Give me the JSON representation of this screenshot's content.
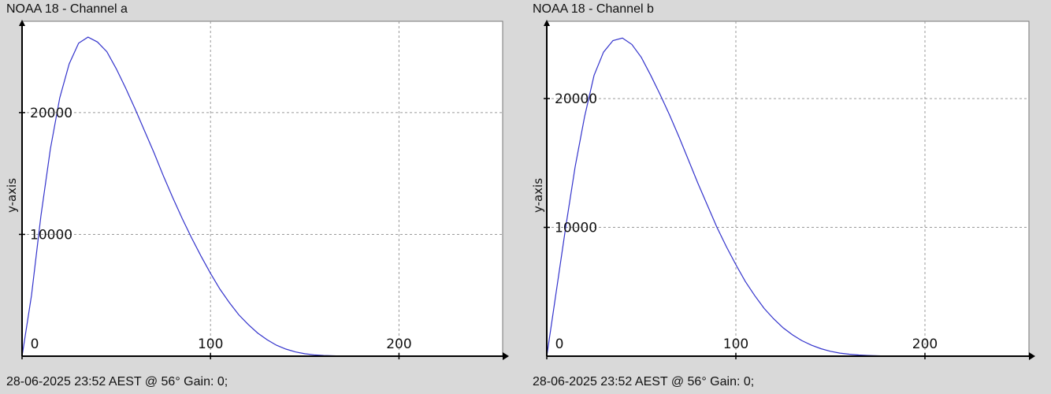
{
  "panels": [
    {
      "title": "NOAA 18 - Channel a",
      "footer": "28-06-2025 23:52 AEST @ 56° Gain: 0;",
      "ylabel": "y-axis"
    },
    {
      "title": "NOAA 18 - Channel b",
      "footer": "28-06-2025 23:52 AEST @ 56° Gain: 0;",
      "ylabel": "y-axis"
    }
  ],
  "colors": {
    "background": "#d9d9d9",
    "plot_bg": "#ffffff",
    "line": "#3333cc",
    "grid": "#9a9a9a",
    "axis": "#000000"
  },
  "chart_data": [
    {
      "type": "line",
      "title": "NOAA 18 - Channel a",
      "xlabel": "",
      "ylabel": "y-axis",
      "xlim": [
        0,
        255
      ],
      "ylim": [
        0,
        27500
      ],
      "grid": true,
      "x_ticks": [
        "0",
        "100",
        "200"
      ],
      "y_ticks": [
        "10000",
        "20000"
      ],
      "series": [
        {
          "x": [
            0,
            5,
            10,
            15,
            20,
            25,
            30,
            35,
            40,
            45,
            50,
            55,
            60,
            65,
            70,
            75,
            80,
            85,
            90,
            95,
            100,
            105,
            110,
            115,
            120,
            125,
            130,
            135,
            140,
            145,
            150,
            155,
            160,
            165,
            170,
            175,
            180,
            185
          ],
          "values": [
            0,
            5000,
            11500,
            17000,
            21200,
            24000,
            25700,
            26200,
            25800,
            25000,
            23600,
            22000,
            20300,
            18500,
            16700,
            14800,
            13000,
            11300,
            9700,
            8200,
            6800,
            5500,
            4400,
            3400,
            2600,
            1900,
            1350,
            900,
            580,
            350,
            200,
            110,
            60,
            30,
            15,
            8,
            4,
            0
          ]
        }
      ]
    },
    {
      "type": "line",
      "title": "NOAA 18 - Channel b",
      "xlabel": "",
      "ylabel": "y-axis",
      "xlim": [
        0,
        255
      ],
      "ylim": [
        0,
        26000
      ],
      "grid": true,
      "x_ticks": [
        "0",
        "100",
        "200"
      ],
      "y_ticks": [
        "10000",
        "20000"
      ],
      "series": [
        {
          "x": [
            0,
            5,
            10,
            15,
            20,
            25,
            30,
            35,
            40,
            45,
            50,
            55,
            60,
            65,
            70,
            75,
            80,
            85,
            90,
            95,
            100,
            105,
            110,
            115,
            120,
            125,
            130,
            135,
            140,
            145,
            150,
            155,
            160,
            165,
            170,
            175,
            180,
            185,
            190,
            195
          ],
          "values": [
            0,
            5000,
            10000,
            14700,
            18600,
            21800,
            23600,
            24500,
            24700,
            24200,
            23200,
            21800,
            20300,
            18700,
            17000,
            15200,
            13400,
            11700,
            10000,
            8500,
            7100,
            5800,
            4700,
            3700,
            2900,
            2200,
            1650,
            1200,
            850,
            580,
            380,
            240,
            150,
            90,
            55,
            30,
            15,
            8,
            4,
            0
          ]
        }
      ]
    }
  ]
}
